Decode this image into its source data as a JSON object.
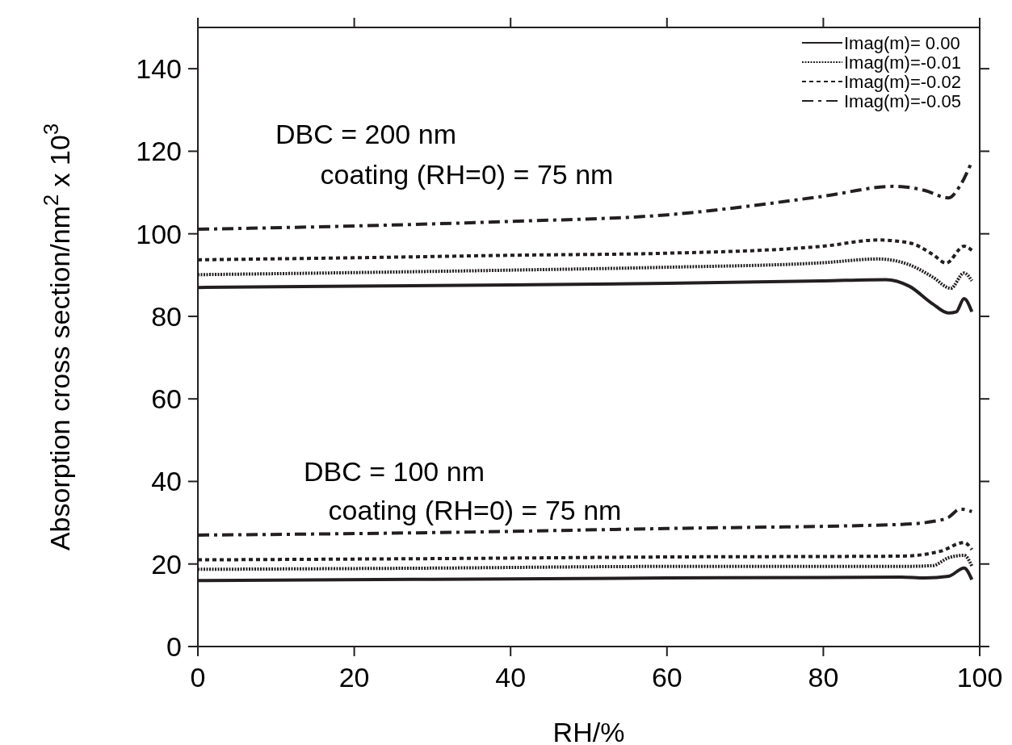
{
  "chart_data": {
    "type": "line",
    "xlabel": "RH/%",
    "ylabel": "Absorption cross section/nm$^{2}$ x 10$^{3}$",
    "xlim": [
      0,
      100
    ],
    "ylim": [
      0,
      150
    ],
    "xticks": [
      0,
      20,
      40,
      60,
      80,
      100
    ],
    "yticks": [
      0,
      20,
      40,
      60,
      80,
      100,
      120,
      140
    ],
    "grid": false,
    "legend": "top right",
    "annotations": [
      "DBC = 200 nm",
      "coating (RH=0) = 75 nm",
      "DBC = 100 nm",
      "coating (RH=0) = 75 nm"
    ],
    "series": [
      {
        "name": "Imag(m)= 0.00",
        "color": "#231f20",
        "line_style": "solid",
        "x": [
          0,
          20,
          40,
          60,
          80,
          88,
          91,
          94,
          96,
          97,
          98,
          99
        ],
        "values": [
          87,
          87.3,
          87.6,
          88,
          88.6,
          88.9,
          87.3,
          83,
          80.8,
          81.1,
          84.3,
          81.1
        ]
      },
      {
        "name": "Imag(m)=-0.01",
        "color": "#231f20",
        "line_style": "dotted",
        "x": [
          0,
          20,
          40,
          60,
          80,
          87,
          91,
          94,
          96.3,
          98,
          99
        ],
        "values": [
          90.1,
          90.6,
          91.2,
          91.9,
          93,
          93.9,
          92.5,
          89.5,
          86.8,
          90.5,
          88.6
        ]
      },
      {
        "name": "Imag(m)=-0.02",
        "color": "#231f20",
        "line_style": "dashed",
        "x": [
          0,
          20,
          40,
          60,
          80,
          87,
          91,
          94,
          95.7,
          98,
          99
        ],
        "values": [
          93.7,
          94.2,
          94.8,
          95.3,
          97,
          98.5,
          97.8,
          95,
          92.9,
          97,
          96
        ]
      },
      {
        "name": "Imag(m)=-0.05",
        "color": "#231f20",
        "line_style": "dashdot",
        "x": [
          0,
          20,
          40,
          60,
          80,
          89,
          93,
          96,
          97.5,
          99
        ],
        "values": [
          101.1,
          101.9,
          103,
          104.6,
          109.1,
          111.5,
          110.5,
          108.7,
          111.7,
          117.5
        ]
      },
      {
        "color": "#231f20",
        "line_style": "solid",
        "x": [
          0,
          30,
          60,
          90,
          93,
          96,
          98,
          99
        ],
        "values": [
          16,
          16.3,
          16.6,
          16.8,
          16.6,
          17,
          19,
          16.2
        ]
      },
      {
        "color": "#231f20",
        "line_style": "dotted",
        "x": [
          0,
          30,
          60,
          90,
          94,
          96,
          98,
          99
        ],
        "values": [
          18.7,
          19,
          19.4,
          19.4,
          19.6,
          21.5,
          22.1,
          19.5
        ]
      },
      {
        "color": "#231f20",
        "line_style": "dashed",
        "x": [
          0,
          30,
          60,
          90,
          95,
          98,
          99
        ],
        "values": [
          21,
          21.3,
          21.7,
          21.9,
          23.1,
          25.2,
          23.5
        ]
      },
      {
        "color": "#231f20",
        "line_style": "dashdot",
        "x": [
          0,
          30,
          60,
          90,
          94,
          96,
          97.5,
          99
        ],
        "values": [
          27,
          27.6,
          28.6,
          29.6,
          30.3,
          31.3,
          33.3,
          32.7
        ]
      }
    ]
  }
}
